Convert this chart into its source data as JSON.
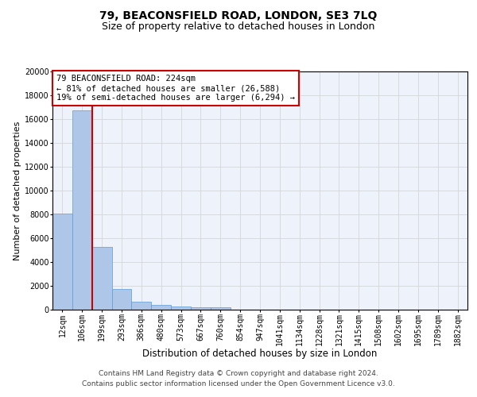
{
  "title1": "79, BEACONSFIELD ROAD, LONDON, SE3 7LQ",
  "title2": "Size of property relative to detached houses in London",
  "xlabel": "Distribution of detached houses by size in London",
  "ylabel": "Number of detached properties",
  "categories": [
    "12sqm",
    "106sqm",
    "199sqm",
    "293sqm",
    "386sqm",
    "480sqm",
    "573sqm",
    "667sqm",
    "760sqm",
    "854sqm",
    "947sqm",
    "1041sqm",
    "1134sqm",
    "1228sqm",
    "1321sqm",
    "1415sqm",
    "1508sqm",
    "1602sqm",
    "1695sqm",
    "1789sqm",
    "1882sqm"
  ],
  "values": [
    8100,
    16700,
    5300,
    1750,
    700,
    370,
    280,
    210,
    190,
    0,
    0,
    0,
    0,
    0,
    0,
    0,
    0,
    0,
    0,
    0,
    0
  ],
  "bar_color": "#aec6e8",
  "bar_edge_color": "#5b9bd5",
  "grid_color": "#d0d0d0",
  "bg_color": "#eef3fb",
  "vline_color": "#cc0000",
  "vline_x_idx": 2,
  "annotation_text": "79 BEACONSFIELD ROAD: 224sqm\n← 81% of detached houses are smaller (26,588)\n19% of semi-detached houses are larger (6,294) →",
  "annotation_box_color": "#cc0000",
  "ylim": [
    0,
    20000
  ],
  "yticks": [
    0,
    2000,
    4000,
    6000,
    8000,
    10000,
    12000,
    14000,
    16000,
    18000,
    20000
  ],
  "footer1": "Contains HM Land Registry data © Crown copyright and database right 2024.",
  "footer2": "Contains public sector information licensed under the Open Government Licence v3.0.",
  "title1_fontsize": 10,
  "title2_fontsize": 9,
  "xlabel_fontsize": 8.5,
  "ylabel_fontsize": 8,
  "tick_fontsize": 7,
  "annotation_fontsize": 7.5,
  "footer_fontsize": 6.5
}
